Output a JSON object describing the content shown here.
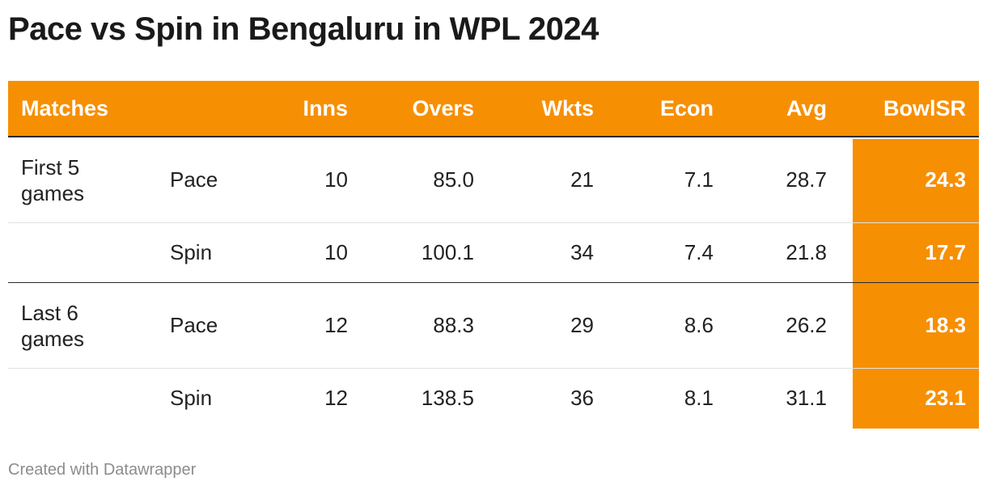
{
  "title": "Pace vs Spin in Bengaluru in WPL 2024",
  "footer": "Created with Datawrapper",
  "colors": {
    "accent": "#f78f03",
    "header_text": "#ffffff",
    "text": "#222222"
  },
  "chart_data": {
    "type": "table",
    "columns": [
      "Matches",
      "",
      "Inns",
      "Overs",
      "Wkts",
      "Econ",
      "Avg",
      "BowlSR"
    ],
    "highlighted_column": "BowlSR",
    "rows": [
      {
        "group": "First 5 games",
        "type": "Pace",
        "inns": "10",
        "overs": "85.0",
        "wkts": "21",
        "econ": "7.1",
        "avg": "28.7",
        "bowlsr": "24.3"
      },
      {
        "group": "",
        "type": "Spin",
        "inns": "10",
        "overs": "100.1",
        "wkts": "34",
        "econ": "7.4",
        "avg": "21.8",
        "bowlsr": "17.7"
      },
      {
        "group": "Last 6 games",
        "type": "Pace",
        "inns": "12",
        "overs": "88.3",
        "wkts": "29",
        "econ": "8.6",
        "avg": "26.2",
        "bowlsr": "18.3"
      },
      {
        "group": "",
        "type": "Spin",
        "inns": "12",
        "overs": "138.5",
        "wkts": "36",
        "econ": "8.1",
        "avg": "31.1",
        "bowlsr": "23.1"
      }
    ]
  }
}
